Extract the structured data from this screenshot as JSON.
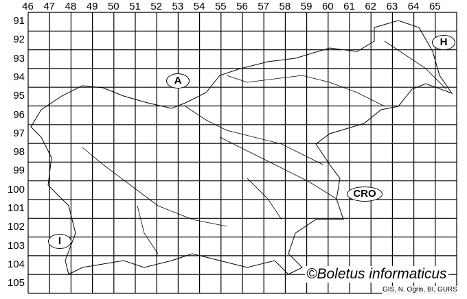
{
  "columns": [
    "46",
    "47",
    "48",
    "49",
    "50",
    "51",
    "52",
    "53",
    "54",
    "55",
    "56",
    "57",
    "58",
    "59",
    "60",
    "61",
    "62",
    "63",
    "64",
    "65"
  ],
  "rows": [
    "91",
    "92",
    "93",
    "94",
    "95",
    "96",
    "97",
    "98",
    "99",
    "100",
    "101",
    "102",
    "103",
    "104",
    "105"
  ],
  "country_labels": {
    "austria": "A",
    "hungary": "H",
    "croatia": "CRO",
    "italy": "I"
  },
  "credit": "©Boletus informaticus",
  "source": "GIS, N. Ogris, BI, GURS"
}
